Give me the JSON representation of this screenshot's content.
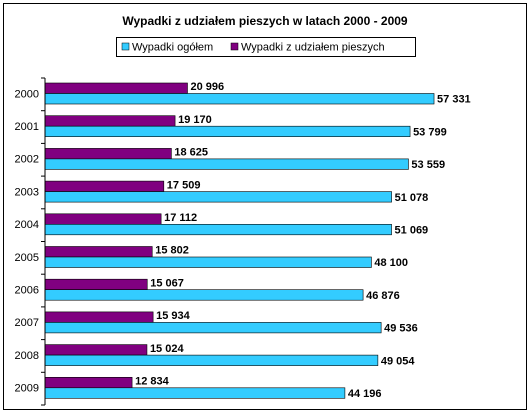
{
  "chart_data": {
    "type": "hbar",
    "title": "Wypadki z udziałem  pieszych w latach 2000 - 2009",
    "categories": [
      "2000",
      "2001",
      "2002",
      "2003",
      "2004",
      "2005",
      "2006",
      "2007",
      "2008",
      "2009"
    ],
    "series": [
      {
        "name": "Wypadki ogółem",
        "color": "#33ccff",
        "values": [
          57331,
          53799,
          53559,
          51078,
          51069,
          48100,
          46876,
          49536,
          49054,
          44196
        ],
        "value_labels": [
          "57 331",
          "53 799",
          "53 559",
          "51 078",
          "51 069",
          "48 100",
          "46 876",
          "49 536",
          "49 054",
          "44 196"
        ]
      },
      {
        "name": "Wypadki z udziałem pieszych",
        "color": "#800080",
        "values": [
          20996,
          19170,
          18625,
          17509,
          17112,
          15802,
          15067,
          15934,
          15024,
          12834
        ],
        "value_labels": [
          "20 996",
          "19 170",
          "18 625",
          "17 509",
          "17 112",
          "15 802",
          "15 067",
          "15 934",
          "15 024",
          "12 834"
        ]
      }
    ],
    "xlim": [
      0,
      70000
    ]
  }
}
